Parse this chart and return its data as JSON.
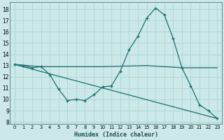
{
  "xlabel": "Humidex (Indice chaleur)",
  "bg_color": "#cce8e8",
  "grid_color": "#b0d8d8",
  "line_color": "#1a7070",
  "xlim": [
    -0.5,
    23.5
  ],
  "ylim": [
    7.8,
    18.6
  ],
  "yticks": [
    8,
    9,
    10,
    11,
    12,
    13,
    14,
    15,
    16,
    17,
    18
  ],
  "xticks": [
    0,
    1,
    2,
    3,
    4,
    5,
    6,
    7,
    8,
    9,
    10,
    11,
    12,
    13,
    14,
    15,
    16,
    17,
    18,
    19,
    20,
    21,
    22,
    23
  ],
  "line1_x": [
    0,
    1,
    2,
    3,
    4,
    5,
    6,
    7,
    8,
    9,
    10,
    11,
    12,
    13,
    14,
    15,
    16,
    17,
    18,
    19,
    20,
    21,
    22,
    23
  ],
  "line1_y": [
    13.1,
    13.0,
    12.8,
    12.9,
    12.2,
    10.9,
    9.9,
    10.0,
    9.9,
    10.4,
    11.1,
    11.2,
    12.5,
    14.4,
    15.6,
    17.2,
    18.1,
    17.5,
    15.4,
    12.8,
    11.2,
    9.5,
    9.0,
    8.3
  ],
  "line2_x": [
    0,
    3,
    10,
    15,
    19,
    23
  ],
  "line2_y": [
    13.1,
    12.9,
    12.9,
    13.0,
    12.8,
    12.8
  ],
  "line3_x": [
    0,
    23
  ],
  "line3_y": [
    13.1,
    8.3
  ]
}
